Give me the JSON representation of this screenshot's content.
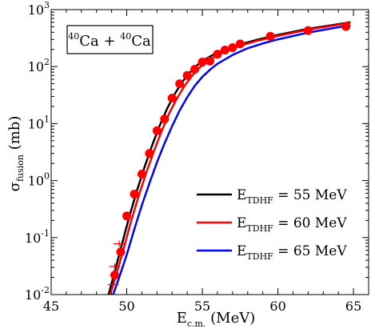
{
  "chart_data": {
    "type": "line",
    "title": "",
    "annotation": {
      "pre_a": "40",
      "el_a": "Ca",
      "op": " + ",
      "pre_b": "40",
      "el_b": "Ca"
    },
    "xlabel": {
      "main": "E",
      "sub": "c.m.",
      "unit": " (MeV)"
    },
    "ylabel": {
      "main": "σ",
      "sub": "fusion",
      "unit": " (mb)"
    },
    "xlim": [
      45,
      66
    ],
    "ylim_exponent": [
      -2,
      3
    ],
    "y_scale": "log",
    "x_ticks": [
      "45",
      "50",
      "55",
      "60",
      "65"
    ],
    "x_tick_values": [
      45,
      50,
      55,
      60,
      65
    ],
    "y_tick_base": "10",
    "y_tick_exponents": [
      "-2",
      "-1",
      "0",
      "1",
      "2",
      "3"
    ],
    "legend_placement": "bottom-right",
    "series": [
      {
        "name": {
          "main": "E",
          "sub": "TDHF",
          "rest": " = 55 MeV"
        },
        "color": "#000000",
        "x": [
          48.8,
          49.2,
          49.7,
          50.2,
          50.7,
          51.2,
          51.7,
          52.2,
          52.7,
          53.2,
          53.7,
          54.2,
          54.7,
          55.2,
          55.7,
          56.5,
          57.5,
          58.5,
          60.0,
          62.0,
          64.0,
          64.8
        ],
        "y": [
          0.01,
          0.025,
          0.08,
          0.25,
          0.7,
          1.8,
          4.3,
          9.5,
          19,
          34,
          55,
          80,
          108,
          135,
          160,
          200,
          245,
          290,
          360,
          460,
          555,
          600
        ]
      },
      {
        "name": {
          "main": "E",
          "sub": "TDHF",
          "rest": " = 60 MeV"
        },
        "color": "#ff0000",
        "x": [
          48.9,
          49.3,
          49.8,
          50.3,
          50.8,
          51.3,
          51.8,
          52.3,
          52.8,
          53.3,
          53.8,
          54.3,
          54.8,
          55.3,
          55.8,
          56.5,
          57.5,
          58.5,
          60.0,
          62.0,
          64.0,
          64.8
        ],
        "y": [
          0.01,
          0.022,
          0.065,
          0.2,
          0.55,
          1.4,
          3.3,
          7.3,
          15,
          27,
          45,
          68,
          95,
          122,
          148,
          185,
          232,
          278,
          345,
          445,
          540,
          585
        ]
      },
      {
        "name": {
          "main": "E",
          "sub": "TDHF",
          "rest": " = 65 MeV"
        },
        "color": "#0000ff",
        "x": [
          49.1,
          49.5,
          50.0,
          50.5,
          51.0,
          51.5,
          52.0,
          52.5,
          53.0,
          53.5,
          54.0,
          54.5,
          55.0,
          55.5,
          56.0,
          57.0,
          58.0,
          59.0,
          60.0,
          62.0,
          64.0,
          64.8
        ],
        "y": [
          0.01,
          0.02,
          0.05,
          0.14,
          0.37,
          0.9,
          2.1,
          4.5,
          9.0,
          17,
          29,
          46,
          66,
          88,
          112,
          160,
          210,
          255,
          300,
          395,
          490,
          530
        ]
      }
    ],
    "experimental": {
      "marker": "filled-circle",
      "color": "#ff0000",
      "x": [
        49.2,
        49.6,
        50.0,
        50.5,
        51.0,
        51.5,
        52.0,
        52.5,
        53.0,
        53.5,
        54.0,
        54.5,
        55.0,
        55.5,
        56.0,
        56.5,
        57.0,
        57.5,
        59.5,
        62.0,
        64.5
      ],
      "y": [
        0.022,
        0.056,
        0.24,
        0.58,
        1.3,
        3.0,
        7.5,
        12,
        28,
        50,
        70,
        90,
        120,
        125,
        165,
        195,
        215,
        250,
        340,
        430,
        505
      ]
    },
    "upper_limits": {
      "marker": "plus",
      "color": "#ff0000",
      "x": [
        49.1,
        49.2,
        49.5
      ],
      "y": [
        0.015,
        0.031,
        0.078
      ]
    }
  }
}
